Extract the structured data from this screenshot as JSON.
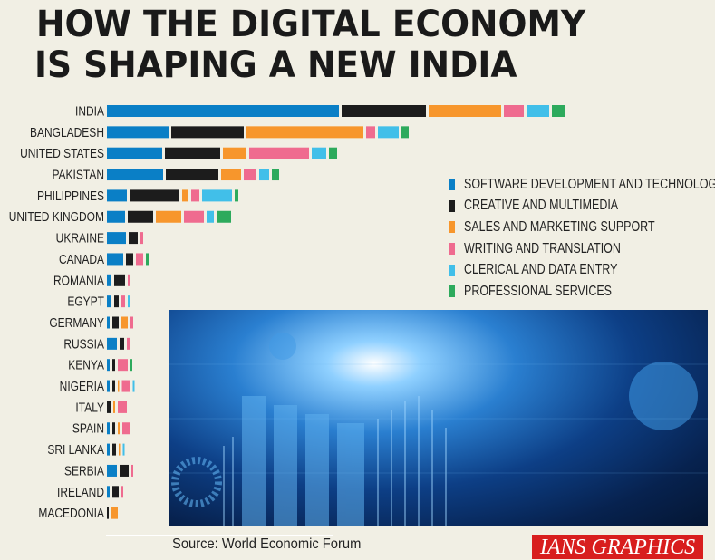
{
  "title": {
    "line1": "HOW THE DIGITAL ECONOMY",
    "line2": "IS SHAPING A NEW INDIA"
  },
  "chart_data": {
    "type": "bar",
    "orientation": "horizontal",
    "layout": "segmented",
    "title": "HOW THE DIGITAL ECONOMY IS SHAPING A NEW INDIA",
    "categories": [
      "INDIA",
      "BANGLADESH",
      "UNITED STATES",
      "PAKISTAN",
      "PHILIPPINES",
      "UNITED KINGDOM",
      "UKRAINE",
      "CANADA",
      "ROMANIA",
      "EGYPT",
      "GERMANY",
      "RUSSIA",
      "KENYA",
      "NIGERIA",
      "ITALY",
      "SPAIN",
      "SRI LANKA",
      "SERBIA",
      "IRELAND",
      "MACEDONIA"
    ],
    "axis_shown": false,
    "grid": false,
    "legend_position": "right",
    "series": [
      {
        "name": "SOFTWARE DEVELOPMENT AND TECHNOLOGY",
        "color": "#0a7fc6",
        "values": [
          256,
          68,
          61,
          62,
          22,
          20,
          21,
          18,
          5,
          5,
          3,
          11,
          3,
          3,
          0,
          3,
          3,
          11,
          3,
          0
        ]
      },
      {
        "name": "CREATIVE AND MULTIMEDIA",
        "color": "#1c1c1c",
        "values": [
          93,
          80,
          61,
          58,
          55,
          28,
          10,
          8,
          12,
          5,
          7,
          5,
          3,
          3,
          4,
          3,
          4,
          10,
          7,
          2
        ]
      },
      {
        "name": "SALES AND MARKETING SUPPORT",
        "color": "#f7962c",
        "values": [
          80,
          129,
          26,
          22,
          7,
          28,
          0,
          0,
          0,
          0,
          7,
          0,
          0,
          1,
          2,
          2,
          1,
          0,
          0,
          7
        ]
      },
      {
        "name": "WRITING AND TRANSLATION",
        "color": "#ef6b8f",
        "values": [
          22,
          10,
          66,
          14,
          9,
          22,
          3,
          8,
          3,
          4,
          3,
          3,
          11,
          9,
          10,
          9,
          0,
          2,
          2,
          0
        ]
      },
      {
        "name": "CLERICAL AND DATA ENTRY",
        "color": "#41bfe9",
        "values": [
          25,
          23,
          16,
          11,
          33,
          8,
          0,
          0,
          0,
          2,
          0,
          0,
          0,
          2,
          0,
          0,
          2,
          0,
          0,
          0
        ]
      },
      {
        "name": "PROFESSIONAL SERVICES",
        "color": "#2daa5c",
        "values": [
          14,
          8,
          9,
          8,
          4,
          16,
          0,
          3,
          0,
          0,
          0,
          0,
          2,
          0,
          0,
          0,
          0,
          0,
          0,
          0
        ]
      }
    ]
  },
  "footer": {
    "source": "Source: World Economic Forum",
    "brand": "IANS GRAPHICS"
  }
}
